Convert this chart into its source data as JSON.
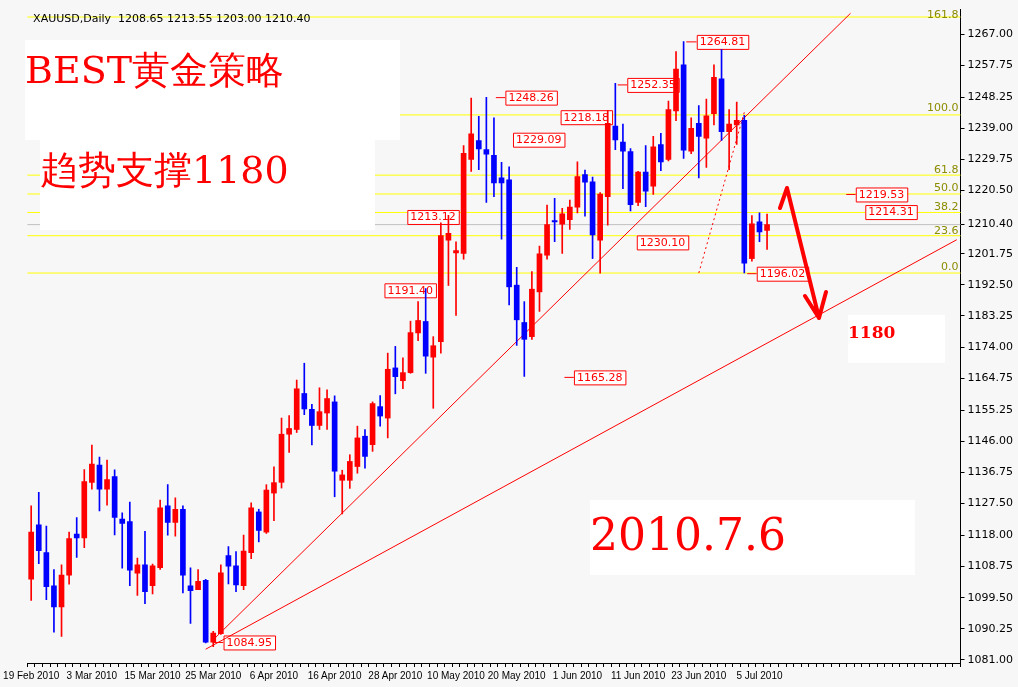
{
  "chart_data": {
    "type": "candlestick",
    "title": "XAUUSD,Daily  1208.65 1213.55 1203.00 1210.40",
    "categories": [
      "19 Feb 2010",
      null,
      null,
      null,
      null,
      null,
      null,
      null,
      "3 Mar 2010",
      null,
      null,
      null,
      null,
      null,
      null,
      null,
      "15 Mar 2010",
      null,
      null,
      null,
      null,
      null,
      null,
      null,
      "25 Mar 2010",
      null,
      null,
      null,
      null,
      null,
      null,
      null,
      "6 Apr 2010",
      null,
      null,
      null,
      null,
      null,
      null,
      null,
      "16 Apr 2010",
      null,
      null,
      null,
      null,
      null,
      null,
      null,
      "28 Apr 2010",
      null,
      null,
      null,
      null,
      null,
      null,
      null,
      "10 May 2010",
      null,
      null,
      null,
      null,
      null,
      null,
      null,
      "20 May 2010",
      null,
      null,
      null,
      null,
      null,
      null,
      null,
      "1 Jun 2010",
      null,
      null,
      null,
      null,
      null,
      null,
      null,
      "11 Jun 2010",
      null,
      null,
      null,
      null,
      null,
      null,
      null,
      "23 Jun 2010",
      null,
      null,
      null,
      null,
      null,
      null,
      null,
      "5 Jul 2010",
      null,
      null,
      null,
      null,
      null,
      null,
      null,
      null,
      null,
      null,
      null,
      null,
      null,
      null,
      null,
      null,
      null,
      null,
      null,
      null,
      null,
      null,
      null,
      null,
      null,
      null
    ],
    "ohlc": [
      [
        1105.0,
        1126.8,
        1098.7,
        1119.0
      ],
      [
        1121.2,
        1130.8,
        1109.6,
        1113.5
      ],
      [
        1112.9,
        1120.8,
        1098.9,
        1102.8
      ],
      [
        1103.0,
        1107.9,
        1089.3,
        1096.8
      ],
      [
        1096.8,
        1109.3,
        1088.0,
        1106.2
      ],
      [
        1106.2,
        1119.0,
        1103.5,
        1117.1
      ],
      [
        1118.4,
        1123.3,
        1111.5,
        1117.3
      ],
      [
        1117.3,
        1137.6,
        1114.4,
        1134.0
      ],
      [
        1133.8,
        1144.9,
        1131.8,
        1139.2
      ],
      [
        1138.9,
        1141.3,
        1125.3,
        1131.8
      ],
      [
        1131.8,
        1140.4,
        1127.0,
        1134.6
      ],
      [
        1135.5,
        1137.5,
        1118.2,
        1123.4
      ],
      [
        1122.9,
        1124.7,
        1108.3,
        1121.6
      ],
      [
        1122.1,
        1127.9,
        1103.1,
        1107.7
      ],
      [
        1106.8,
        1111.3,
        1100.2,
        1109.3
      ],
      [
        1109.3,
        1119.2,
        1097.7,
        1101.3
      ],
      [
        1103.1,
        1109.5,
        1100.6,
        1109.0
      ],
      [
        1108.4,
        1128.5,
        1107.9,
        1126.2
      ],
      [
        1126.8,
        1133.1,
        1118.1,
        1121.9
      ],
      [
        1121.9,
        1129.2,
        1117.8,
        1125.8
      ],
      [
        1125.8,
        1126.8,
        1100.9,
        1106.2
      ],
      [
        1103.0,
        1108.4,
        1091.9,
        1101.6
      ],
      [
        1101.9,
        1107.9,
        1101.9,
        1104.4
      ],
      [
        1104.7,
        1105.0,
        1086.1,
        1086.3
      ],
      [
        1086.3,
        1089.5,
        1084.95,
        1089.0
      ],
      [
        1088.8,
        1109.3,
        1088.6,
        1106.9
      ],
      [
        1112.0,
        1114.7,
        1103.6,
        1108.9
      ],
      [
        1109.0,
        1113.2,
        1101.3,
        1103.3
      ],
      [
        1103.1,
        1118.1,
        1101.9,
        1113.4
      ],
      [
        1112.9,
        1127.7,
        1111.1,
        1126.2
      ],
      [
        1125.0,
        1125.8,
        1116.1,
        1119.5
      ],
      [
        1119.0,
        1133.1,
        1118.6,
        1131.5
      ],
      [
        1130.6,
        1138.4,
        1122.4,
        1133.7
      ],
      [
        1133.8,
        1152.9,
        1132.1,
        1148.1
      ],
      [
        1148.1,
        1153.6,
        1142.7,
        1149.8
      ],
      [
        1149.5,
        1164.2,
        1148.6,
        1161.6
      ],
      [
        1160.2,
        1169.2,
        1153.9,
        1155.6
      ],
      [
        1155.5,
        1157.0,
        1144.9,
        1150.7
      ],
      [
        1150.7,
        1161.9,
        1149.5,
        1154.8
      ],
      [
        1154.4,
        1161.3,
        1149.5,
        1158.7
      ],
      [
        1157.7,
        1159.5,
        1129.5,
        1137.1
      ],
      [
        1134.4,
        1137.4,
        1124.4,
        1136.0
      ],
      [
        1134.4,
        1142.0,
        1132.0,
        1140.0
      ],
      [
        1138.5,
        1150.5,
        1136.5,
        1147.0
      ],
      [
        1147.5,
        1149.5,
        1138.0,
        1141.5
      ],
      [
        1145.0,
        1157.7,
        1143.0,
        1157.2
      ],
      [
        1156.3,
        1159.6,
        1150.5,
        1153.5
      ],
      [
        1152.9,
        1172.2,
        1147.0,
        1167.4
      ],
      [
        1167.8,
        1174.2,
        1160.1,
        1165.2
      ],
      [
        1164.0,
        1170.8,
        1161.6,
        1166.4
      ],
      [
        1166.4,
        1181.7,
        1166.2,
        1178.3
      ],
      [
        1178.2,
        1187.5,
        1175.9,
        1181.9
      ],
      [
        1181.6,
        1191.4,
        1166.2,
        1171.3
      ],
      [
        1171.0,
        1177.1,
        1155.8,
        1174.4
      ],
      [
        1175.6,
        1210.9,
        1172.2,
        1207.1
      ],
      [
        1205.8,
        1213.12,
        1192.3,
        1207.8
      ],
      [
        1202.0,
        1205.3,
        1183.4,
        1202.7
      ],
      [
        1201.8,
        1233.9,
        1200.1,
        1231.6
      ],
      [
        1229.8,
        1248.0,
        1226.2,
        1237.4
      ],
      [
        1235.4,
        1242.6,
        1226.7,
        1232.9
      ],
      [
        1232.7,
        1248.26,
        1217.0,
        1231.3
      ],
      [
        1231.0,
        1242.1,
        1218.7,
        1222.8
      ],
      [
        1224.3,
        1228.9,
        1206.1,
        1222.8
      ],
      [
        1223.7,
        1227.6,
        1186.5,
        1191.9
      ],
      [
        1192.4,
        1197.7,
        1174.5,
        1182.1
      ],
      [
        1181.3,
        1187.5,
        1165.28,
        1176.3
      ],
      [
        1177.1,
        1196.4,
        1176.3,
        1191.2
      ],
      [
        1190.4,
        1204.0,
        1184.6,
        1201.7
      ],
      [
        1201.3,
        1216.2,
        1200.1,
        1210.4
      ],
      [
        1211.6,
        1218.18,
        1205.3,
        1211.2
      ],
      [
        1210.5,
        1215.2,
        1201.8,
        1213.6
      ],
      [
        1211.9,
        1217.7,
        1209.0,
        1215.6
      ],
      [
        1215.6,
        1229.09,
        1213.9,
        1224.7
      ],
      [
        1225.3,
        1226.6,
        1212.9,
        1223.0
      ],
      [
        1223.1,
        1224.5,
        1200.3,
        1207.3
      ],
      [
        1205.8,
        1219.9,
        1196.0,
        1219.5
      ],
      [
        1218.7,
        1244.3,
        1210.2,
        1240.5
      ],
      [
        1239.7,
        1252.35,
        1232.7,
        1235.6
      ],
      [
        1234.9,
        1240.3,
        1221.1,
        1232.2
      ],
      [
        1232.1,
        1233.0,
        1214.5,
        1216.3
      ],
      [
        1217.0,
        1226.2,
        1216.0,
        1226.0
      ],
      [
        1226.0,
        1233.9,
        1215.7,
        1220.3
      ],
      [
        1221.8,
        1236.6,
        1219.4,
        1233.5
      ],
      [
        1234.2,
        1237.5,
        1226.4,
        1229.0
      ],
      [
        1229.8,
        1247.1,
        1229.3,
        1244.6
      ],
      [
        1244.2,
        1261.8,
        1241.3,
        1256.6
      ],
      [
        1257.9,
        1264.81,
        1230.1,
        1232.5
      ],
      [
        1232.2,
        1242.1,
        1231.5,
        1239.0
      ],
      [
        1240.5,
        1245.8,
        1224.3,
        1236.6
      ],
      [
        1236.1,
        1247.7,
        1227.4,
        1242.7
      ],
      [
        1243.4,
        1257.9,
        1240.0,
        1254.2
      ],
      [
        1253.7,
        1262.4,
        1235.4,
        1238.0
      ],
      [
        1238.0,
        1244.6,
        1226.7,
        1240.3
      ],
      [
        1240.0,
        1246.8,
        1234.2,
        1241.4
      ],
      [
        1241.4,
        1242.9,
        1196.02,
        1198.9
      ],
      [
        1200.3,
        1213.1,
        1199.5,
        1210.6
      ],
      [
        1211.2,
        1213.9,
        1205.3,
        1208.2
      ],
      [
        1208.65,
        1213.55,
        1203.0,
        1210.4
      ],
      null,
      null,
      null,
      null,
      null,
      null,
      null,
      null,
      null,
      null,
      null,
      null,
      null,
      null,
      null,
      null,
      null,
      null,
      null,
      null,
      null,
      null,
      null,
      null,
      null
    ],
    "colors": [
      "#ff0000",
      "#0000ff",
      "#0000ff",
      "#0000ff",
      "#ff0000",
      "#ff0000",
      "#0000ff",
      "#ff0000",
      "#ff0000",
      "#0000ff",
      "#ff0000",
      "#0000ff",
      "#0000ff",
      "#0000ff",
      "#ff0000",
      "#0000ff",
      "#ff0000",
      "#ff0000",
      "#0000ff",
      "#ff0000",
      "#0000ff",
      "#0000ff",
      "#ff0000",
      "#0000ff",
      "#ff0000",
      "#ff0000",
      "#0000ff",
      "#0000ff",
      "#ff0000",
      "#ff0000",
      "#0000ff",
      "#ff0000",
      "#ff0000",
      "#ff0000",
      "#ff0000",
      "#ff0000",
      "#0000ff",
      "#0000ff",
      "#ff0000",
      "#ff0000",
      "#0000ff",
      "#ff0000",
      "#ff0000",
      "#ff0000",
      "#0000ff",
      "#ff0000",
      "#0000ff",
      "#ff0000",
      "#0000ff",
      "#ff0000",
      "#ff0000",
      "#ff0000",
      "#0000ff",
      "#ff0000",
      "#ff0000",
      "#ff0000",
      "#ff0000",
      "#ff0000",
      "#ff0000",
      "#0000ff",
      "#0000ff",
      "#0000ff",
      "#0000ff",
      "#0000ff",
      "#0000ff",
      "#0000ff",
      "#ff0000",
      "#ff0000",
      "#ff0000",
      "#0000ff",
      "#ff0000",
      "#ff0000",
      "#ff0000",
      "#0000ff",
      "#0000ff",
      "#ff0000",
      "#ff0000",
      "#0000ff",
      "#0000ff",
      "#0000ff",
      "#ff0000",
      "#0000ff",
      "#ff0000",
      "#0000ff",
      "#ff0000",
      "#ff0000",
      "#0000ff",
      "#ff0000",
      "#0000ff",
      "#ff0000",
      "#ff0000",
      "#0000ff",
      "#ff0000",
      "#ff0000",
      "#0000ff",
      "#ff0000",
      "#0000ff",
      "#ff0000",
      null,
      null,
      null,
      null,
      null,
      null,
      null,
      null,
      null,
      null,
      null,
      null,
      null,
      null,
      null,
      null,
      null,
      null,
      null,
      null,
      null,
      null,
      null,
      null,
      null
    ],
    "series": [
      {
        "type": "line",
        "color": "#ff0000",
        "values": [
          null,
          null,
          null,
          null,
          null,
          null,
          null,
          null,
          null,
          null,
          null,
          null,
          null,
          null,
          null,
          null,
          null,
          null,
          null,
          null,
          null,
          null,
          null,
          null,
          1087.0,
          null,
          null,
          null,
          null,
          null,
          null,
          null,
          null,
          null,
          null,
          null,
          null,
          null,
          null,
          null,
          null,
          null,
          null,
          null,
          null,
          null,
          null,
          null,
          null,
          null,
          null,
          null,
          null,
          null,
          null,
          null,
          null,
          null,
          null,
          null,
          null,
          null,
          null,
          null,
          null,
          null,
          null,
          null,
          null,
          null,
          null,
          null,
          null,
          null,
          null,
          null,
          null,
          null,
          null,
          null,
          null,
          null,
          null,
          null,
          null,
          null,
          null,
          null,
          null,
          null,
          null,
          null,
          null,
          null,
          null,
          null,
          null,
          null,
          null,
          null,
          null,
          null,
          null,
          null,
          null,
          null,
          null,
          null,
          1273.2,
          null,
          null,
          null,
          null,
          null,
          null,
          null,
          null,
          null,
          null,
          null,
          null,
          null,
          null
        ]
      },
      {
        "type": "line",
        "color": "#ff0000",
        "values": [
          null,
          null,
          null,
          null,
          null,
          null,
          null,
          null,
          null,
          null,
          null,
          null,
          null,
          null,
          null,
          null,
          null,
          null,
          null,
          null,
          null,
          null,
          null,
          1084.2,
          null,
          null,
          null,
          null,
          null,
          null,
          null,
          null,
          null,
          null,
          null,
          null,
          null,
          null,
          null,
          null,
          null,
          null,
          null,
          null,
          null,
          null,
          null,
          null,
          null,
          null,
          null,
          null,
          null,
          null,
          null,
          null,
          null,
          null,
          null,
          null,
          null,
          null,
          null,
          null,
          null,
          null,
          null,
          null,
          null,
          null,
          null,
          null,
          null,
          null,
          null,
          null,
          null,
          null,
          null,
          null,
          null,
          null,
          null,
          null,
          null,
          null,
          null,
          null,
          null,
          null,
          null,
          null,
          null,
          null,
          null,
          null,
          null,
          null,
          null,
          null,
          null,
          null,
          null,
          null,
          null,
          null,
          null,
          null,
          null,
          null,
          null,
          null,
          null,
          null,
          null,
          null,
          null,
          null,
          null,
          null,
          null,
          null,
          1205.9
        ]
      },
      {
        "type": "line",
        "color": "#ff0000",
        "line_style": "dotted",
        "values": [
          null,
          null,
          null,
          null,
          null,
          null,
          null,
          null,
          null,
          null,
          null,
          null,
          null,
          null,
          null,
          null,
          null,
          null,
          null,
          null,
          null,
          null,
          null,
          null,
          null,
          null,
          null,
          null,
          null,
          null,
          null,
          null,
          null,
          null,
          null,
          null,
          null,
          null,
          null,
          null,
          null,
          null,
          null,
          null,
          null,
          null,
          null,
          null,
          null,
          null,
          null,
          null,
          null,
          null,
          null,
          null,
          null,
          null,
          null,
          null,
          null,
          null,
          null,
          null,
          null,
          null,
          null,
          null,
          null,
          null,
          null,
          null,
          null,
          null,
          null,
          null,
          null,
          null,
          null,
          null,
          null,
          null,
          null,
          null,
          null,
          null,
          null,
          null,
          1196.0,
          null,
          null,
          null,
          null,
          null,
          1243.8,
          null,
          null,
          null,
          null,
          null,
          null,
          null,
          null,
          null,
          null,
          null,
          null,
          null,
          null,
          null,
          null,
          null,
          null,
          null,
          null,
          null,
          null,
          null,
          null,
          null,
          null,
          null,
          null
        ]
      }
    ],
    "ylim": [
      1080.1,
      1274.3
    ],
    "yticks": [
      {
        "value": 1081,
        "label": "1081.00"
      },
      {
        "value": 1090.25,
        "label": "1090.25"
      },
      {
        "value": 1099.5,
        "label": "1099.50"
      },
      {
        "value": 1108.75,
        "label": "1108.75"
      },
      {
        "value": 1118,
        "label": "1118.00"
      },
      {
        "value": 1127.5,
        "label": "1127.50"
      },
      {
        "value": 1136.75,
        "label": "1136.75"
      },
      {
        "value": 1146,
        "label": "1146.00"
      },
      {
        "value": 1155.25,
        "label": "1155.25"
      },
      {
        "value": 1164.75,
        "label": "1164.75"
      },
      {
        "value": 1174,
        "label": "1174.00"
      },
      {
        "value": 1183.25,
        "label": "1183.25"
      },
      {
        "value": 1192.5,
        "label": "1192.50"
      },
      {
        "value": 1201.75,
        "label": "1201.75"
      },
      {
        "value": 1210.4,
        "label": "1210.40"
      },
      {
        "value": 1220.5,
        "label": "1220.50"
      },
      {
        "value": 1229.75,
        "label": "1229.75"
      },
      {
        "value": 1239,
        "label": "1239.00"
      },
      {
        "value": 1248.25,
        "label": "1248.25"
      },
      {
        "value": 1257.75,
        "label": "1257.75"
      },
      {
        "value": 1267,
        "label": "1267.00"
      }
    ],
    "ref_lines": [
      {
        "axis": "y",
        "value": 1210.4,
        "color": "#c0c0c0"
      },
      {
        "axis": "y",
        "value": 1196.0,
        "color": "#ffff00"
      },
      {
        "axis": "y",
        "value": 1207.1,
        "color": "#ffff00"
      },
      {
        "axis": "y",
        "value": 1214.0,
        "color": "#ffff00"
      },
      {
        "axis": "y",
        "value": 1219.5,
        "color": "#ffff00"
      },
      {
        "axis": "y",
        "value": 1225.1,
        "color": "#ffff00"
      },
      {
        "axis": "y",
        "value": 1243.0,
        "color": "#ffff00"
      },
      {
        "axis": "y",
        "value": 1272.1,
        "color": "#ffff00"
      }
    ],
    "annotations": [
      "BEST黄金策略",
      "趋势支撑1180",
      "1180",
      "2010.7.6",
      "1084.95",
      "1191.40",
      "1213.12",
      "1248.26",
      "1165.28",
      "1218.18",
      "1229.09",
      "1252.35",
      "1264.81",
      "1230.10",
      "1196.02",
      "1219.53",
      "1214.31",
      "0.0",
      "23.6",
      "38.2",
      "50.0",
      "61.8",
      "100.0",
      "161.8"
    ]
  }
}
